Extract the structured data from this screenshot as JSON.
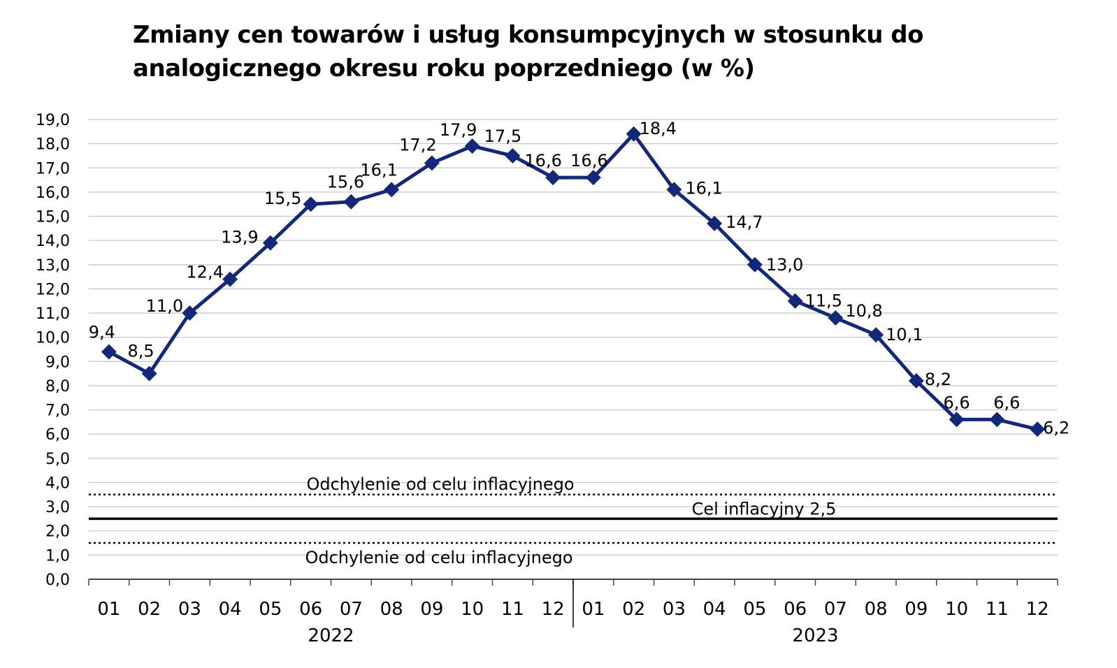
{
  "chart_data": {
    "type": "line",
    "title": "Zmiany cen towarów i usług konsumpcyjnych w stosunku do analogicznego okresu roku poprzedniego (w %)",
    "categories": [
      "01",
      "02",
      "03",
      "04",
      "05",
      "06",
      "07",
      "08",
      "09",
      "10",
      "11",
      "12",
      "01",
      "02",
      "03",
      "04",
      "05",
      "06",
      "07",
      "08",
      "09",
      "10",
      "11",
      "12"
    ],
    "years": [
      {
        "label": "2022",
        "months": 12
      },
      {
        "label": "2023",
        "months": 12
      }
    ],
    "series": [
      {
        "values": [
          9.4,
          8.5,
          11.0,
          12.4,
          13.9,
          15.5,
          15.6,
          16.1,
          17.2,
          17.9,
          17.5,
          16.6,
          16.6,
          18.4,
          16.1,
          14.7,
          13.0,
          11.5,
          10.8,
          10.1,
          8.2,
          6.6,
          6.6,
          6.2
        ],
        "labels": [
          "9,4",
          "8,5",
          "11,0",
          "12,4",
          "13,9",
          "15,5",
          "15,6",
          "16,1",
          "17,2",
          "17,9",
          "17,5",
          "16,6",
          "16,6",
          "18,4",
          "16,1",
          "14,7",
          "13,0",
          "11,5",
          "10,8",
          "10,1",
          "8,2",
          "6,6",
          "6,6",
          "6,2"
        ],
        "color": "#14287a"
      }
    ],
    "ylim": [
      0,
      19
    ],
    "y_ticks": [
      0,
      1,
      2,
      3,
      4,
      5,
      6,
      7,
      8,
      9,
      10,
      11,
      12,
      13,
      14,
      15,
      16,
      17,
      18,
      19
    ],
    "y_tick_labels": [
      "0,0",
      "1,0",
      "2,0",
      "3,0",
      "4,0",
      "5,0",
      "6,0",
      "7,0",
      "8,0",
      "9,0",
      "10,0",
      "11,0",
      "12,0",
      "13,0",
      "14,0",
      "15,0",
      "16,0",
      "17,0",
      "18,0",
      "19,0"
    ],
    "grid": true,
    "reference_lines": [
      {
        "value": 3.5,
        "style": "dotted",
        "label": "Odchylenie od celu inflacyjnego",
        "label_position": "above"
      },
      {
        "value": 2.5,
        "style": "solid",
        "label": "Cel inflacyjny 2,5",
        "label_position": "above"
      },
      {
        "value": 1.5,
        "style": "dotted",
        "label": "Odchylenie od celu inflacyjnego",
        "label_position": "below"
      }
    ]
  }
}
